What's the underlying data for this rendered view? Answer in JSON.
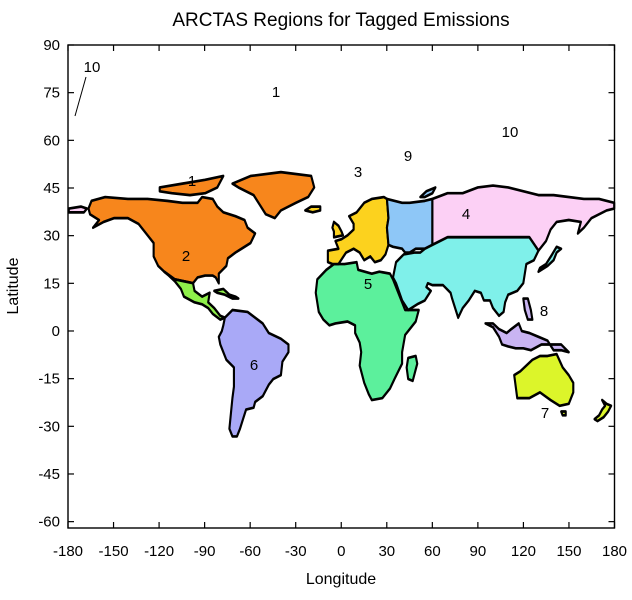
{
  "map": {
    "title": "ARCTAS Regions for Tagged Emissions",
    "xlabel": "Longitude",
    "ylabel": "Latitude",
    "x_ticks": [
      "-180",
      "-150",
      "-120",
      "-90",
      "-60",
      "-30",
      "0",
      "30",
      "60",
      "90",
      "120",
      "150",
      "180"
    ],
    "y_ticks": [
      "90",
      "75",
      "60",
      "45",
      "30",
      "15",
      "0",
      "-15",
      "-30",
      "-45",
      "-60"
    ],
    "xlim": [
      -180,
      180
    ],
    "ylim": [
      -62,
      90
    ],
    "regions": [
      {
        "id": "1",
        "label": "1",
        "color": "#f7861c"
      },
      {
        "id": "2",
        "label": "2",
        "color": "#8ff04a"
      },
      {
        "id": "3",
        "label": "3",
        "color": "#fcd21e"
      },
      {
        "id": "4",
        "label": "4",
        "color": "#7ff0ea"
      },
      {
        "id": "5",
        "label": "5",
        "color": "#5cf09c"
      },
      {
        "id": "6",
        "label": "6",
        "color": "#a9a9f7"
      },
      {
        "id": "7",
        "label": "7",
        "color": "#dcf52a"
      },
      {
        "id": "8",
        "label": "8",
        "color": "#c9b4f2"
      },
      {
        "id": "9",
        "label": "9",
        "color": "#8ec7f7"
      },
      {
        "id": "10",
        "label": "10",
        "color": "#fcd0f5"
      }
    ]
  }
}
